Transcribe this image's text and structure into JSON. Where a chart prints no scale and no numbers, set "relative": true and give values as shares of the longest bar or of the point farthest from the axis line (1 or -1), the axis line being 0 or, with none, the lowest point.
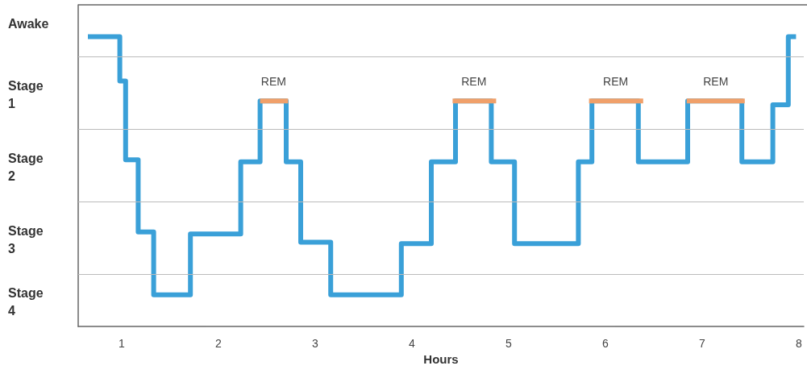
{
  "chart_data": {
    "type": "step",
    "xlabel": "Hours",
    "relative": true,
    "xlim": [
      0.55,
      8.05
    ],
    "xticks": [
      1,
      2,
      3,
      4,
      5,
      6,
      7,
      8
    ],
    "marker": "none",
    "line_style": "solid",
    "ref_lines": [
      {
        "axis": "y",
        "value": 0.93,
        "color": "#bbbbbb"
      },
      {
        "axis": "y",
        "value": 0.679,
        "color": "#bbbbbb"
      },
      {
        "axis": "y",
        "value": 0.432,
        "color": "#bbbbbb"
      },
      {
        "axis": "y",
        "value": 0.18,
        "color": "#bbbbbb"
      }
    ],
    "series": [
      {
        "color": "#3aa0d8",
        "x": [
          0.65,
          0.98,
          1.04,
          1.17,
          1.33,
          1.71,
          2.23,
          2.43,
          2.7,
          2.85,
          3.16,
          3.89,
          4.2,
          4.45,
          4.82,
          5.06,
          5.72,
          5.86,
          6.34,
          6.85,
          7.41,
          7.73,
          7.89,
          7.97
        ],
        "values": [
          1,
          0.847,
          0.575,
          0.326,
          0.109,
          0.319,
          0.568,
          0.778,
          0.568,
          0.291,
          0.109,
          0.286,
          0.568,
          0.778,
          0.568,
          0.286,
          0.568,
          0.778,
          0.568,
          0.778,
          0.568,
          0.765,
          1,
          1
        ]
      },
      {
        "color": "#f0a06a",
        "x": [
          2.43,
          2.71,
          2.72,
          4.42,
          4.86,
          4.87,
          5.83,
          6.38,
          6.39,
          6.84,
          7.44
        ],
        "values": [
          0.778,
          0.778,
          null,
          0.778,
          0.778,
          null,
          0.778,
          0.778,
          null,
          0.778,
          0.778
        ]
      }
    ],
    "annotations": [
      "Awake",
      "Stage 1",
      "Stage 2",
      "Stage 3",
      "Stage 4",
      "REM",
      "REM",
      "REM",
      "REM"
    ]
  }
}
